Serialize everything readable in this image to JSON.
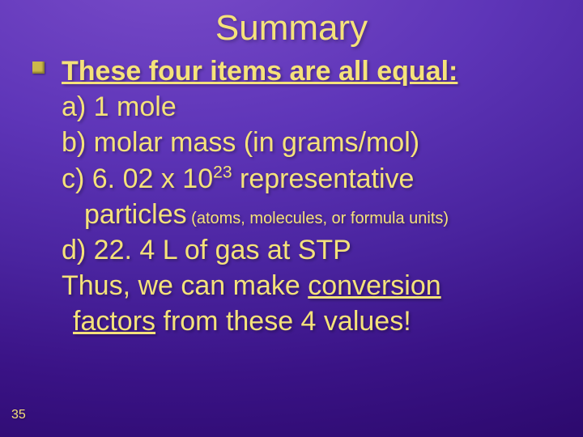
{
  "background": {
    "type": "radial-gradient",
    "center": "30% -10%",
    "stops": [
      "#7a4cc9",
      "#5e35b8",
      "#4a249f",
      "#3a1386",
      "#2d0a6f"
    ]
  },
  "text_color": "#f5e27a",
  "bullet_color": "#ccb84a",
  "title": {
    "text": "Summary",
    "fontsize": 44,
    "weight": 400,
    "align": "center"
  },
  "heading": {
    "text": "These four items are all equal:",
    "fontsize": 34,
    "weight": 700,
    "underline": true
  },
  "items": {
    "a": "a) 1 mole",
    "b": "b) molar mass (in grams/mol)",
    "c_pre": "c) 6. 02 x 10",
    "c_exp": "23",
    "c_post": " representative",
    "c_line2": "particles",
    "c_paren": " (atoms, molecules, or formula units)",
    "d": "d) 22. 4 L of gas at STP"
  },
  "closing": {
    "line1_pre": "Thus, we can make ",
    "line1_u": "conversion",
    "line2_u": "factors",
    "line2_post": " from these 4 values!"
  },
  "slide_number": "35",
  "typography": {
    "body_fontsize": 34,
    "small_inline_fontsize": 20,
    "num_fontsize": 16
  }
}
